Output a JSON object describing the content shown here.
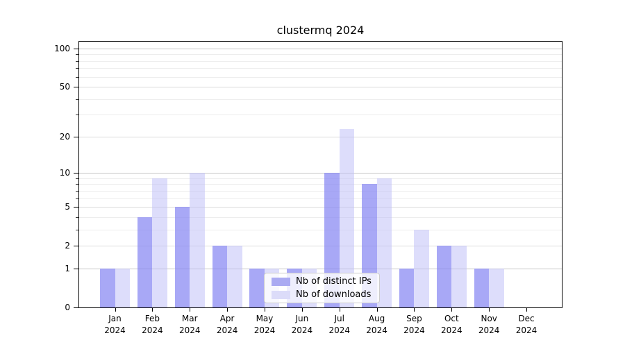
{
  "chart_data": {
    "type": "bar",
    "title": "clustermq 2024",
    "categories": [
      "Jan",
      "Feb",
      "Mar",
      "Apr",
      "May",
      "Jun",
      "Jul",
      "Aug",
      "Sep",
      "Oct",
      "Nov",
      "Dec"
    ],
    "year_label": "2024",
    "series": [
      {
        "name": "Nb of distinct IPs",
        "color": "rgba(134,134,242,0.72)",
        "legend_color": "#aaaaf2",
        "values": [
          1,
          4,
          5,
          2,
          1,
          1,
          10,
          8,
          1,
          2,
          1,
          0
        ]
      },
      {
        "name": "Nb of downloads",
        "color": "rgba(190,190,248,0.52)",
        "legend_color": "#dcdcf9",
        "values": [
          1,
          9,
          10,
          2,
          1,
          1,
          23,
          9,
          3,
          2,
          1,
          0
        ]
      }
    ],
    "xlabel": "",
    "ylabel": "",
    "y_axis": {
      "scale": "log1p",
      "major_ticks": [
        0,
        1,
        2,
        5,
        10,
        20,
        50,
        100
      ],
      "minor_ticks": [
        3,
        4,
        6,
        7,
        8,
        9,
        30,
        40,
        60,
        70,
        80,
        90
      ],
      "decade_ticks": [
        1,
        10,
        100
      ],
      "top_value": 113
    },
    "grid": true,
    "legend_position": "lower center-left inside plot"
  },
  "colors": {
    "background": "#ffffff",
    "spine": "#000000",
    "grid_decade": "#c6c6c6",
    "grid_major": "#dadada",
    "grid_minor": "#ededed",
    "text": "#000000"
  }
}
